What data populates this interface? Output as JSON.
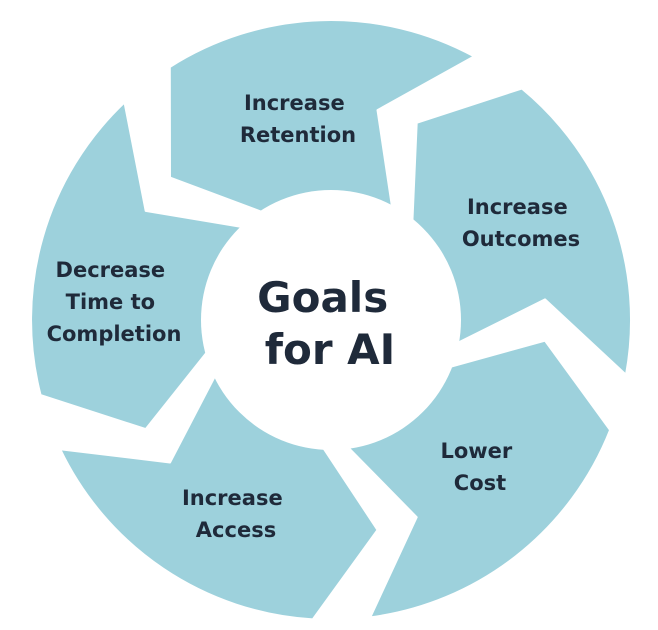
{
  "colors": {
    "segment_fill": "#9dd1dc",
    "separator": "#ffffff",
    "center_fill": "#ffffff",
    "text": "#1f2a3a"
  },
  "center": {
    "lines": [
      "Goals",
      "for AI"
    ]
  },
  "segments": [
    {
      "lines": [
        "Increase",
        "Retention"
      ]
    },
    {
      "lines": [
        "Increase",
        "Outcomes"
      ]
    },
    {
      "lines": [
        "Lower",
        "Cost"
      ]
    },
    {
      "lines": [
        "Increase",
        "Access"
      ]
    },
    {
      "lines": [
        "Decrease",
        "Time to",
        "Completion"
      ]
    }
  ]
}
